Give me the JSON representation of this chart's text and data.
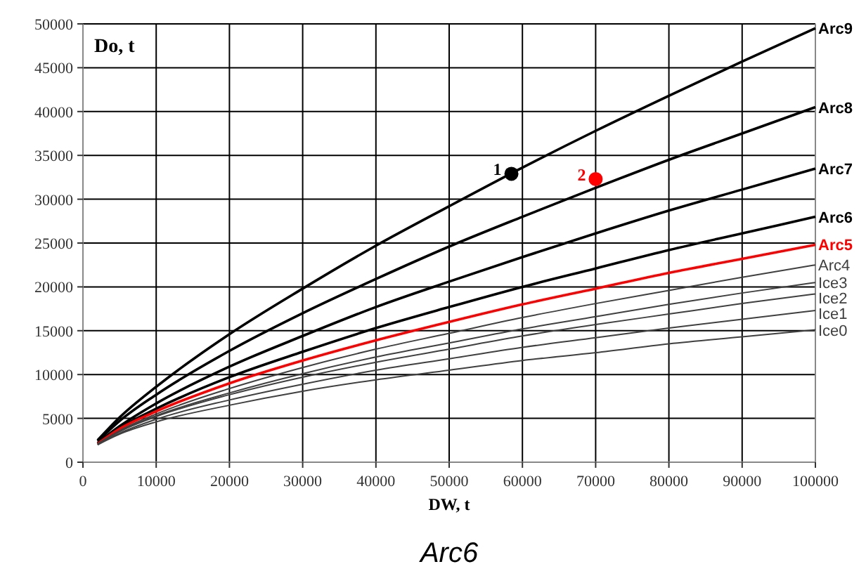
{
  "chart_data": {
    "type": "line",
    "xlabel": "DW, t",
    "ylabel": "Do, t",
    "annotations": [
      "Arc6"
    ],
    "x": [
      2000,
      5000,
      10000,
      20000,
      30000,
      40000,
      50000,
      60000,
      70000,
      80000,
      90000,
      100000
    ],
    "xlim": [
      0,
      100000
    ],
    "xticks": [
      0,
      10000,
      20000,
      30000,
      40000,
      50000,
      60000,
      70000,
      80000,
      90000,
      100000
    ],
    "ylim": [
      0,
      50000
    ],
    "yticks": [
      0,
      5000,
      10000,
      15000,
      20000,
      25000,
      30000,
      35000,
      40000,
      45000,
      50000
    ],
    "grid": true,
    "marker": "none",
    "line_style": "solid",
    "series": [
      {
        "name": "Arc9",
        "color": "#000000",
        "values": [
          2500,
          5100,
          8600,
          14600,
          19800,
          24700,
          29200,
          33600,
          37800,
          41800,
          45700,
          49500
        ]
      },
      {
        "name": "Arc8",
        "color": "#000000",
        "values": [
          2400,
          4700,
          7700,
          12700,
          17000,
          20900,
          24600,
          28000,
          31300,
          34500,
          37500,
          40500
        ]
      },
      {
        "name": "Arc7",
        "color": "#000000",
        "values": [
          2200,
          4100,
          6700,
          10900,
          14400,
          17700,
          20600,
          23400,
          26100,
          28700,
          31100,
          33500
        ]
      },
      {
        "name": "Arc6",
        "color": "#000000",
        "values": [
          2100,
          3900,
          6100,
          9700,
          12600,
          15300,
          17700,
          20000,
          22100,
          24200,
          26100,
          28000
        ]
      },
      {
        "name": "Arc5",
        "color": "#ff0000",
        "values": [
          2100,
          3800,
          5800,
          9000,
          11600,
          13900,
          16000,
          18000,
          19800,
          21600,
          23200,
          24800
        ]
      },
      {
        "name": "Arc4",
        "color": "#404040",
        "values": [
          2100,
          3600,
          5500,
          8400,
          10800,
          12900,
          14700,
          16500,
          18100,
          19600,
          21100,
          22500
        ]
      },
      {
        "name": "Ice3",
        "color": "#404040",
        "values": [
          2000,
          3500,
          5300,
          7900,
          10100,
          12000,
          13600,
          15200,
          16600,
          18000,
          19300,
          20500
        ]
      },
      {
        "name": "Ice2",
        "color": "#404040",
        "values": [
          2100,
          3500,
          5200,
          7700,
          9700,
          11400,
          12900,
          14400,
          15700,
          16900,
          18100,
          19200
        ]
      },
      {
        "name": "Ice1",
        "color": "#404040",
        "values": [
          2000,
          3300,
          4900,
          7100,
          8900,
          10500,
          11800,
          13100,
          14200,
          15300,
          16300,
          17300
        ]
      },
      {
        "name": "Ice0",
        "color": "#404040",
        "values": [
          2000,
          3200,
          4600,
          6500,
          8100,
          9400,
          10500,
          11600,
          12500,
          13500,
          14300,
          15100
        ]
      },
      {
        "name": "1",
        "type": "scatter",
        "marker": "circle",
        "color": "#000000",
        "x": [
          58500
        ],
        "values": [
          32900
        ]
      },
      {
        "name": "2",
        "type": "scatter",
        "marker": "circle",
        "color": "#ff0000",
        "x": [
          70000
        ],
        "values": [
          32300
        ]
      }
    ]
  }
}
